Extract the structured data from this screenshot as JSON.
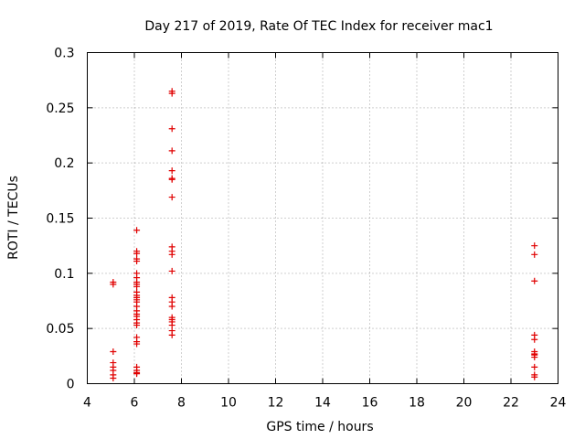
{
  "chart_data": {
    "type": "scatter",
    "title": "Day 217 of 2019, Rate Of TEC Index for receiver mac1",
    "xlabel": "GPS time / hours",
    "ylabel": "ROTI / TECUs",
    "xlim": [
      4,
      24
    ],
    "ylim": [
      0,
      0.3
    ],
    "xticks": [
      4,
      6,
      8,
      10,
      12,
      14,
      16,
      18,
      20,
      22,
      24
    ],
    "xtick_labels": [
      "4",
      "6",
      "8",
      "10",
      "12",
      "14",
      "16",
      "18",
      "20",
      "22",
      "24"
    ],
    "yticks": [
      0,
      0.05,
      0.1,
      0.15,
      0.2,
      0.25,
      0.3
    ],
    "ytick_labels": [
      "0",
      "0.05",
      "0.1",
      "0.15",
      "0.2",
      "0.25",
      "0.3"
    ],
    "grid": true,
    "marker": "plus",
    "color": "#e00000",
    "series": [
      {
        "name": "ROTI",
        "points": [
          [
            5.1,
            0.092
          ],
          [
            5.1,
            0.09
          ],
          [
            5.1,
            0.029
          ],
          [
            5.1,
            0.019
          ],
          [
            5.1,
            0.015
          ],
          [
            5.1,
            0.012
          ],
          [
            5.1,
            0.008
          ],
          [
            5.1,
            0.005
          ],
          [
            6.1,
            0.139
          ],
          [
            6.1,
            0.12
          ],
          [
            6.1,
            0.118
          ],
          [
            6.1,
            0.113
          ],
          [
            6.1,
            0.111
          ],
          [
            6.1,
            0.1
          ],
          [
            6.1,
            0.096
          ],
          [
            6.1,
            0.092
          ],
          [
            6.1,
            0.09
          ],
          [
            6.1,
            0.088
          ],
          [
            6.1,
            0.083
          ],
          [
            6.1,
            0.08
          ],
          [
            6.1,
            0.078
          ],
          [
            6.1,
            0.076
          ],
          [
            6.1,
            0.074
          ],
          [
            6.1,
            0.07
          ],
          [
            6.1,
            0.066
          ],
          [
            6.1,
            0.063
          ],
          [
            6.1,
            0.061
          ],
          [
            6.1,
            0.058
          ],
          [
            6.1,
            0.055
          ],
          [
            6.1,
            0.053
          ],
          [
            6.1,
            0.042
          ],
          [
            6.1,
            0.038
          ],
          [
            6.1,
            0.036
          ],
          [
            6.1,
            0.015
          ],
          [
            6.1,
            0.012
          ],
          [
            6.1,
            0.01
          ],
          [
            6.1,
            0.009
          ],
          [
            7.6,
            0.265
          ],
          [
            7.6,
            0.263
          ],
          [
            7.6,
            0.231
          ],
          [
            7.6,
            0.211
          ],
          [
            7.6,
            0.193
          ],
          [
            7.6,
            0.186
          ],
          [
            7.6,
            0.185
          ],
          [
            7.6,
            0.169
          ],
          [
            7.6,
            0.124
          ],
          [
            7.6,
            0.12
          ],
          [
            7.6,
            0.117
          ],
          [
            7.6,
            0.102
          ],
          [
            7.6,
            0.078
          ],
          [
            7.6,
            0.074
          ],
          [
            7.6,
            0.07
          ],
          [
            7.6,
            0.06
          ],
          [
            7.6,
            0.058
          ],
          [
            7.6,
            0.056
          ],
          [
            7.6,
            0.053
          ],
          [
            7.6,
            0.048
          ],
          [
            7.6,
            0.044
          ],
          [
            23.0,
            0.125
          ],
          [
            23.0,
            0.117
          ],
          [
            23.0,
            0.093
          ],
          [
            23.0,
            0.044
          ],
          [
            23.0,
            0.04
          ],
          [
            23.0,
            0.029
          ],
          [
            23.0,
            0.027
          ],
          [
            23.0,
            0.026
          ],
          [
            23.0,
            0.024
          ],
          [
            23.0,
            0.015
          ],
          [
            23.0,
            0.008
          ],
          [
            23.0,
            0.006
          ]
        ]
      }
    ]
  }
}
